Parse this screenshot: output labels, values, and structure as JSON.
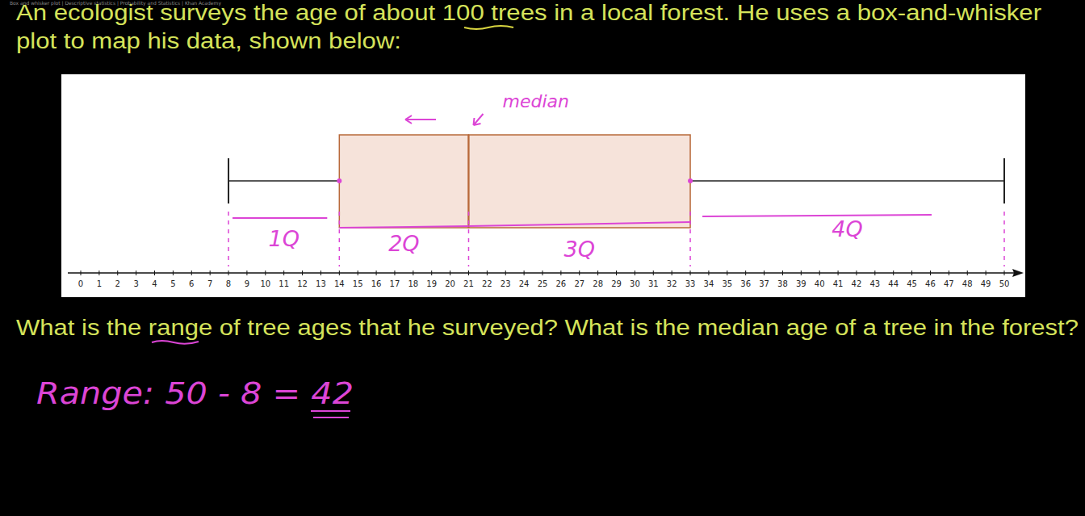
{
  "page_title": "Box and whisker plot | Descriptive statistics | Probability and Statistics | Khan Academy",
  "question": {
    "lines": [
      "An ecologist surveys the age of about 100 trees in a local forest. He uses a box-and-whisker",
      "plot to map his data, shown below:"
    ],
    "ask": "What is the range of tree ages that he surveyed? What is the median age of a tree in the forest?"
  },
  "answer": "Range: 50 - 8 = 42",
  "chart_data": {
    "type": "box",
    "boxes": [
      {
        "min": 8,
        "q1": 14,
        "median": 21,
        "q3": 33,
        "max": 50
      }
    ],
    "color": "#f6e3da",
    "xlim": [
      0,
      50
    ],
    "xticks": [
      0,
      1,
      2,
      3,
      4,
      5,
      6,
      7,
      8,
      9,
      10,
      11,
      12,
      13,
      14,
      15,
      16,
      17,
      18,
      19,
      20,
      21,
      22,
      23,
      24,
      25,
      26,
      27,
      28,
      29,
      30,
      31,
      32,
      33,
      34,
      35,
      36,
      37,
      38,
      39,
      40,
      41,
      42,
      43,
      44,
      45,
      46,
      47,
      48,
      49,
      50
    ],
    "annotations": {
      "median": "median",
      "quartiles": [
        "1Q",
        "2Q",
        "3Q",
        "4Q"
      ]
    }
  }
}
